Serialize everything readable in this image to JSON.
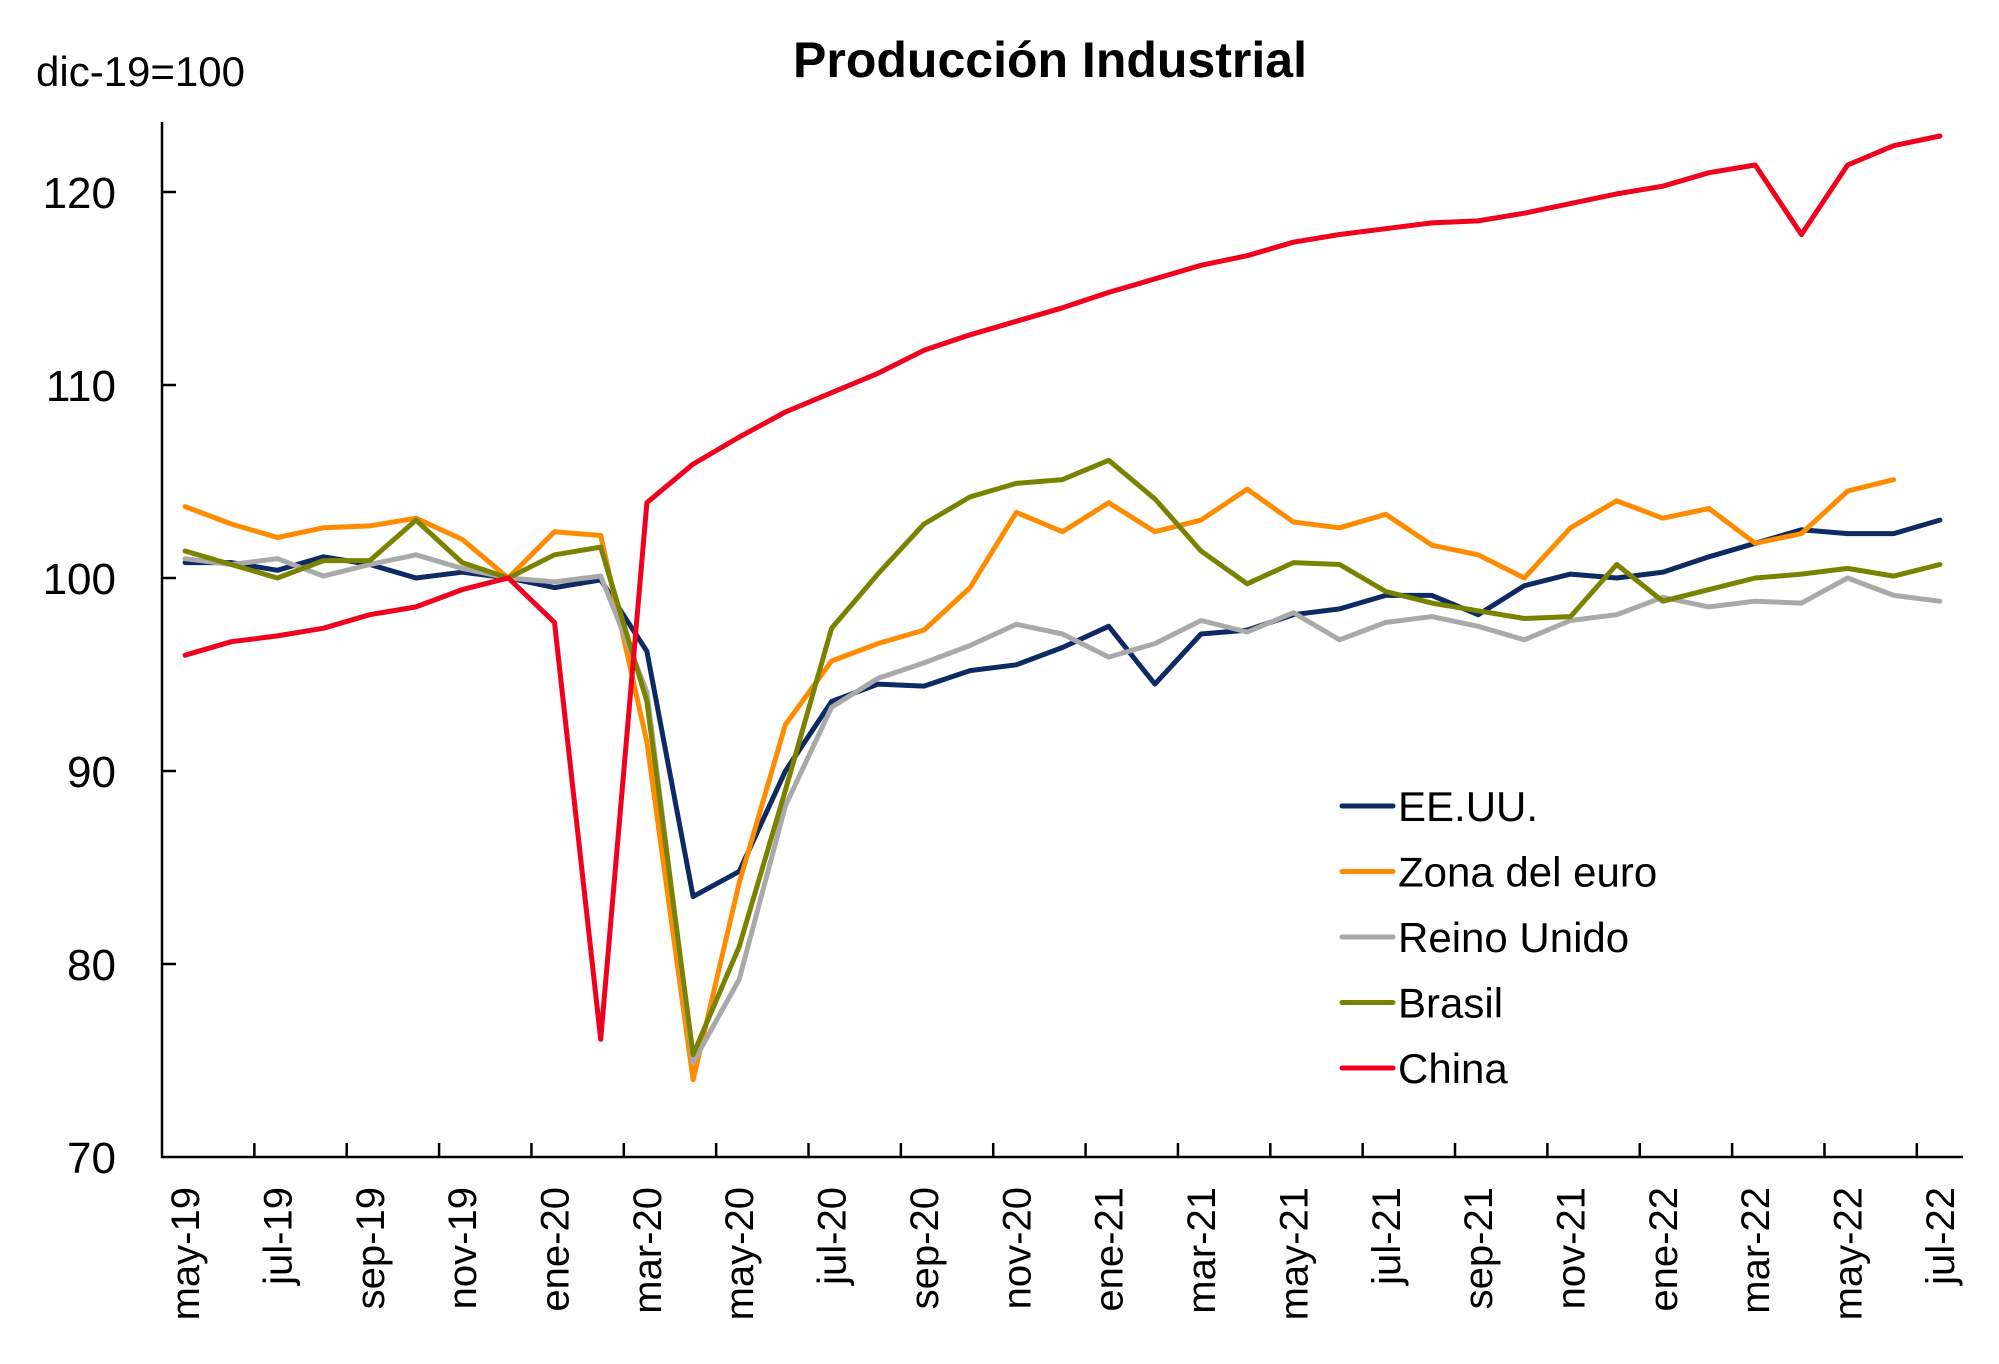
{
  "chart_data": {
    "type": "line",
    "title": "Producción Industrial",
    "ylabel": "dic-19=100",
    "xlabel": "",
    "ylim": [
      70,
      123.5
    ],
    "yticks": [
      70,
      80,
      90,
      100,
      110,
      120
    ],
    "grid": false,
    "legend_position": "bottom-right",
    "x": [
      "may-19",
      "jun-19",
      "jul-19",
      "ago-19",
      "sep-19",
      "oct-19",
      "nov-19",
      "dic-19",
      "ene-20",
      "feb-20",
      "mar-20",
      "abr-20",
      "may-20",
      "jun-20",
      "jul-20",
      "ago-20",
      "sep-20",
      "oct-20",
      "nov-20",
      "dic-20",
      "ene-21",
      "feb-21",
      "mar-21",
      "abr-21",
      "may-21",
      "jun-21",
      "jul-21",
      "ago-21",
      "sep-21",
      "oct-21",
      "nov-21",
      "dic-21",
      "ene-22",
      "feb-22",
      "mar-22",
      "abr-22",
      "may-22",
      "jun-22",
      "jul-22"
    ],
    "xtick_labels": [
      "may-19",
      "jul-19",
      "sep-19",
      "nov-19",
      "ene-20",
      "mar-20",
      "may-20",
      "jul-20",
      "sep-20",
      "nov-20",
      "ene-21",
      "mar-21",
      "may-21",
      "jul-21",
      "sep-21",
      "nov-21",
      "ene-22",
      "mar-22",
      "may-22",
      "jul-22"
    ],
    "series": [
      {
        "name": "EE.UU.",
        "color": "#0d2a64",
        "values": [
          100.8,
          100.8,
          100.4,
          101.1,
          100.7,
          100.0,
          100.3,
          100.0,
          99.5,
          99.9,
          96.2,
          83.5,
          84.8,
          90.0,
          93.6,
          94.5,
          94.4,
          95.2,
          95.5,
          96.4,
          97.5,
          94.5,
          97.1,
          97.3,
          98.1,
          98.4,
          99.1,
          99.1,
          98.1,
          99.6,
          100.2,
          100.0,
          100.3,
          101.1,
          101.8,
          102.5,
          102.3,
          102.3,
          103.0
        ]
      },
      {
        "name": "Zona del euro",
        "color": "#ff8c00",
        "values": [
          103.7,
          102.8,
          102.1,
          102.6,
          102.7,
          103.1,
          102.0,
          100.0,
          102.4,
          102.2,
          91.5,
          74.0,
          84.2,
          92.4,
          95.7,
          96.6,
          97.3,
          99.5,
          103.4,
          102.4,
          103.9,
          102.4,
          103.0,
          104.6,
          102.9,
          102.6,
          103.3,
          101.7,
          101.2,
          100.0,
          102.6,
          104.0,
          103.1,
          103.6,
          101.8,
          102.3,
          104.5,
          105.1,
          null
        ]
      },
      {
        "name": "Reino Unido",
        "color": "#a9a9a9",
        "values": [
          101.0,
          100.7,
          101.0,
          100.1,
          100.7,
          101.2,
          100.5,
          100.0,
          99.8,
          100.1,
          94.1,
          74.9,
          79.2,
          88.2,
          93.3,
          94.8,
          95.6,
          96.5,
          97.6,
          97.1,
          95.9,
          96.6,
          97.8,
          97.2,
          98.2,
          96.8,
          97.7,
          98.0,
          97.5,
          96.8,
          97.8,
          98.1,
          99.0,
          98.5,
          98.8,
          98.7,
          100.0,
          99.1,
          98.8
        ]
      },
      {
        "name": "Brasil",
        "color": "#7a8300",
        "values": [
          101.4,
          100.7,
          100.0,
          100.9,
          100.9,
          103.0,
          100.8,
          100.0,
          101.2,
          101.6,
          93.6,
          75.3,
          80.9,
          89.0,
          97.4,
          100.2,
          102.8,
          104.2,
          104.9,
          105.1,
          106.1,
          104.1,
          101.4,
          99.7,
          100.8,
          100.7,
          99.3,
          98.7,
          98.3,
          97.9,
          98.0,
          100.7,
          98.8,
          99.4,
          100.0,
          100.2,
          100.5,
          100.1,
          100.7
        ]
      },
      {
        "name": "China",
        "color": "#f0001c",
        "values": [
          96.0,
          96.7,
          97.0,
          97.4,
          98.1,
          98.5,
          99.4,
          100.0,
          97.7,
          76.1,
          103.9,
          105.9,
          107.3,
          108.6,
          109.6,
          110.6,
          111.8,
          112.6,
          113.3,
          114.0,
          114.8,
          115.5,
          116.2,
          116.7,
          117.4,
          117.8,
          118.1,
          118.4,
          118.5,
          118.9,
          119.4,
          119.9,
          120.3,
          121.0,
          121.4,
          117.8,
          121.4,
          122.4,
          122.9
        ]
      }
    ]
  }
}
